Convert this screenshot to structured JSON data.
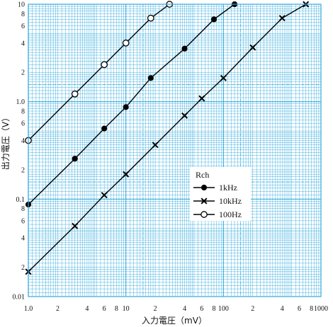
{
  "chart_data": {
    "type": "line",
    "xlabel": "入力電圧（mV）",
    "ylabel": "出力電圧（V）",
    "xscale": "log",
    "yscale": "log",
    "xlim": [
      1,
      1000
    ],
    "ylim": [
      0.01,
      10
    ],
    "x_tick_labels": [
      {
        "v": 1,
        "t": "1.0"
      },
      {
        "v": 2,
        "t": "2"
      },
      {
        "v": 4,
        "t": "4"
      },
      {
        "v": 6,
        "t": "6"
      },
      {
        "v": 8,
        "t": "8"
      },
      {
        "v": 10,
        "t": "10"
      },
      {
        "v": 20,
        "t": "2"
      },
      {
        "v": 40,
        "t": "4"
      },
      {
        "v": 60,
        "t": "6"
      },
      {
        "v": 80,
        "t": "8"
      },
      {
        "v": 100,
        "t": "100"
      },
      {
        "v": 200,
        "t": "2"
      },
      {
        "v": 400,
        "t": "4"
      },
      {
        "v": 600,
        "t": "6"
      },
      {
        "v": 800,
        "t": "8"
      },
      {
        "v": 1000,
        "t": "1000"
      }
    ],
    "y_tick_labels": [
      {
        "v": 0.01,
        "t": "0.01"
      },
      {
        "v": 0.02,
        "t": "2"
      },
      {
        "v": 0.04,
        "t": "4"
      },
      {
        "v": 0.06,
        "t": "6"
      },
      {
        "v": 0.08,
        "t": "8"
      },
      {
        "v": 0.1,
        "t": "0.1"
      },
      {
        "v": 0.2,
        "t": "2"
      },
      {
        "v": 0.4,
        "t": "4"
      },
      {
        "v": 0.6,
        "t": "6"
      },
      {
        "v": 0.8,
        "t": "8"
      },
      {
        "v": 1,
        "t": "1.0"
      },
      {
        "v": 2,
        "t": "2"
      },
      {
        "v": 4,
        "t": "4"
      },
      {
        "v": 6,
        "t": "6"
      },
      {
        "v": 8,
        "t": "8"
      },
      {
        "v": 10,
        "t": "10"
      }
    ],
    "grid": true,
    "grid_color": "#33aadd",
    "line_color": "#000000",
    "background_color": "#ffffff",
    "legend": {
      "title": "Rch",
      "placement": "center-right"
    },
    "series": [
      {
        "name": "1kHz",
        "marker": "filled-circle",
        "points": [
          {
            "x": 1.0,
            "y": 0.088
          },
          {
            "x": 3.0,
            "y": 0.26
          },
          {
            "x": 6.0,
            "y": 0.53
          },
          {
            "x": 10.0,
            "y": 0.88
          },
          {
            "x": 18.0,
            "y": 1.75
          },
          {
            "x": 40.0,
            "y": 3.5
          },
          {
            "x": 80.0,
            "y": 7.0
          },
          {
            "x": 130.0,
            "y": 10.0
          }
        ]
      },
      {
        "name": "10kHz",
        "marker": "cross",
        "points": [
          {
            "x": 1.0,
            "y": 0.018
          },
          {
            "x": 3.0,
            "y": 0.053
          },
          {
            "x": 6.0,
            "y": 0.11
          },
          {
            "x": 10.0,
            "y": 0.18
          },
          {
            "x": 20.0,
            "y": 0.36
          },
          {
            "x": 40.0,
            "y": 0.72
          },
          {
            "x": 60.0,
            "y": 1.08
          },
          {
            "x": 100.0,
            "y": 1.75
          },
          {
            "x": 200.0,
            "y": 3.6
          },
          {
            "x": 400.0,
            "y": 7.2
          },
          {
            "x": 700.0,
            "y": 10.0
          }
        ]
      },
      {
        "name": "100Hz",
        "marker": "open-circle",
        "points": [
          {
            "x": 1.0,
            "y": 0.4
          },
          {
            "x": 3.0,
            "y": 1.2
          },
          {
            "x": 6.0,
            "y": 2.4
          },
          {
            "x": 10.0,
            "y": 4.0
          },
          {
            "x": 18.0,
            "y": 7.2
          },
          {
            "x": 28.0,
            "y": 10.0
          }
        ]
      }
    ]
  }
}
